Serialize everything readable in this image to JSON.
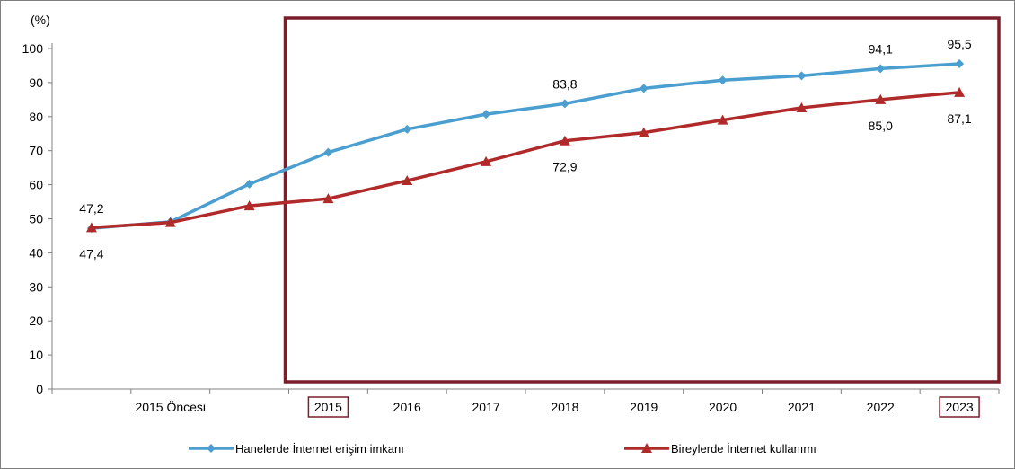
{
  "chart_data": {
    "type": "line",
    "ylabel": "(%)",
    "ylim": [
      0,
      100
    ],
    "ytick_step": 10,
    "categories": [
      "",
      "2015 Öncesi",
      "",
      "2015",
      "2016",
      "2017",
      "2018",
      "2019",
      "2020",
      "2021",
      "2022",
      "2023"
    ],
    "highlighted_categories": [
      "2015",
      "2023"
    ],
    "highlight_box": {
      "from": "2015",
      "to": "2023",
      "color": "#7b1e2b"
    },
    "series": [
      {
        "name": "Hanelerde İnternet erişim imkanı",
        "color": "#4a9fd0",
        "marker": "diamond",
        "values": [
          47.2,
          49.1,
          60.2,
          69.5,
          76.3,
          80.7,
          83.8,
          88.3,
          90.7,
          92.0,
          94.1,
          95.5
        ]
      },
      {
        "name": "Bireylerde İnternet kullanımı",
        "color": "#b02a2a",
        "marker": "triangle",
        "values": [
          47.4,
          48.9,
          53.8,
          55.9,
          61.2,
          66.8,
          72.9,
          75.3,
          79.0,
          82.6,
          85.0,
          87.1
        ]
      }
    ],
    "data_labels": [
      {
        "series": 0,
        "index": 0,
        "text": "47,2",
        "position": "above"
      },
      {
        "series": 1,
        "index": 0,
        "text": "47,4",
        "position": "below"
      },
      {
        "series": 0,
        "index": 6,
        "text": "83,8",
        "position": "above"
      },
      {
        "series": 1,
        "index": 6,
        "text": "72,9",
        "position": "below"
      },
      {
        "series": 0,
        "index": 10,
        "text": "94,1",
        "position": "above"
      },
      {
        "series": 1,
        "index": 10,
        "text": "85,0",
        "position": "below"
      },
      {
        "series": 0,
        "index": 11,
        "text": "95,5",
        "position": "above"
      },
      {
        "series": 1,
        "index": 11,
        "text": "87,1",
        "position": "below"
      }
    ],
    "legend": "bottom"
  }
}
